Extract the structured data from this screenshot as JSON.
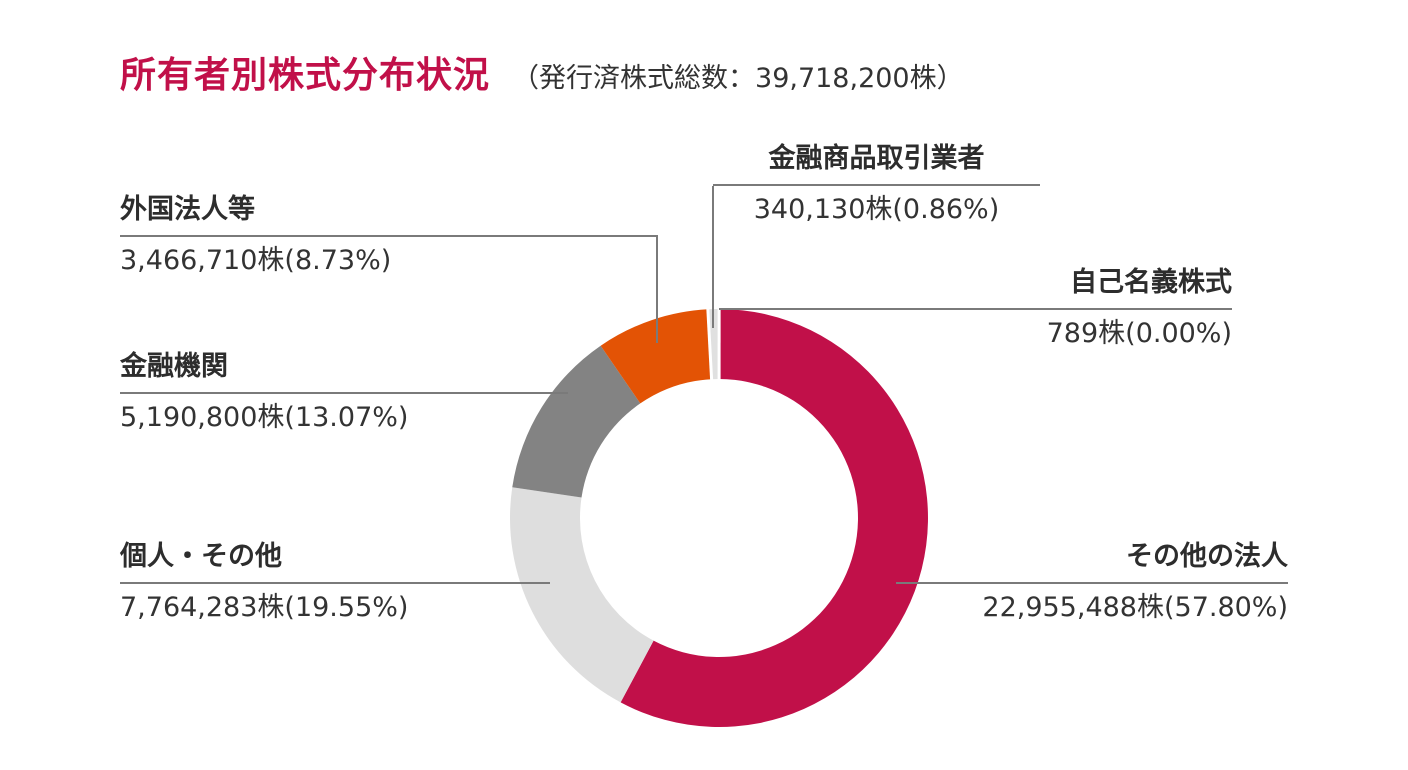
{
  "header": {
    "title": "所有者別株式分布状況",
    "subtitle": "（発行済株式総数：39,718,200株）"
  },
  "chart_data": {
    "type": "donut",
    "title": "所有者別株式分布状況",
    "total_shares": 39718200,
    "total_shares_text": "39,718,200株",
    "start_angle_deg": 0,
    "direction": "clockwise",
    "legend_position": "callout-labels",
    "slices": [
      {
        "key": "other-corporations",
        "label": "その他の法人",
        "shares": 22955488,
        "percent": 57.8,
        "value_text": "22,955,488株(57.80%)",
        "color": "#C11049"
      },
      {
        "key": "individuals-other",
        "label": "個人・その他",
        "shares": 7764283,
        "percent": 19.55,
        "value_text": "7,764,283株(19.55%)",
        "color": "#DEDEDE"
      },
      {
        "key": "financial-institutions",
        "label": "金融機関",
        "shares": 5190800,
        "percent": 13.07,
        "value_text": "5,190,800株(13.07%)",
        "color": "#838383"
      },
      {
        "key": "foreign-corporations",
        "label": "外国法人等",
        "shares": 3466710,
        "percent": 8.73,
        "value_text": "3,466,710株(8.73%)",
        "color": "#E35305"
      },
      {
        "key": "financial-instruments-dealers",
        "label": "金融商品取引業者",
        "shares": 340130,
        "percent": 0.86,
        "value_text": "340,130株(0.86%)",
        "color": "#E0E0E0",
        "separated": true
      },
      {
        "key": "treasury-stock",
        "label": "自己名義株式",
        "shares": 789,
        "percent": 0.0,
        "value_text": "789株(0.00%)",
        "color": "#E0E0E0"
      }
    ]
  }
}
